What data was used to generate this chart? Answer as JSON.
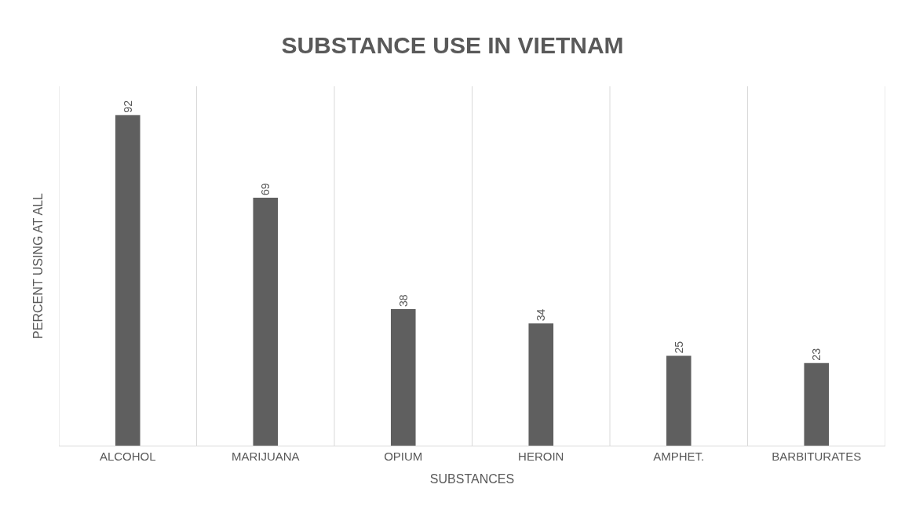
{
  "chart_data": {
    "type": "bar",
    "title": "SUBSTANCE USE IN VIETNAM",
    "xlabel": "SUBSTANCES",
    "ylabel": "PERCENT USING AT ALL",
    "categories": [
      "ALCOHOL",
      "MARIJUANA",
      "OPIUM",
      "HEROIN",
      "AMPHET.",
      "BARBITURATES"
    ],
    "values": [
      92,
      69,
      38,
      34,
      25,
      23
    ],
    "color": "#5f5f5f",
    "ylim": [
      0,
      100
    ],
    "data_labels": true,
    "grid": "x"
  }
}
